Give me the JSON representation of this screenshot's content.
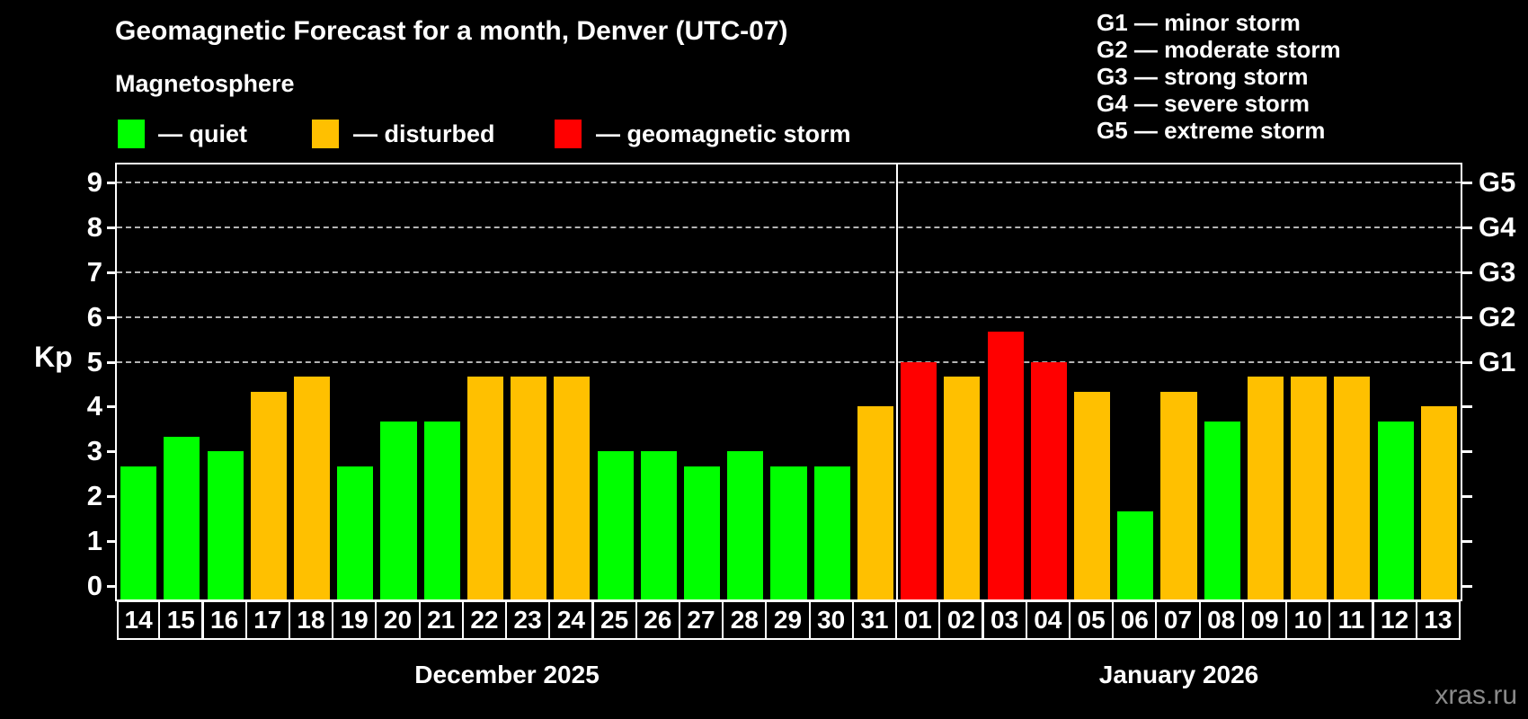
{
  "title": "Geomagnetic Forecast for a month, Denver (UTC-07)",
  "subtitle": "Magnetosphere",
  "status_legend": [
    {
      "status": "quiet",
      "label": "— quiet",
      "color": "#00ff00"
    },
    {
      "status": "disturbed",
      "label": "— disturbed",
      "color": "#ffc000"
    },
    {
      "status": "storm",
      "label": "— geomagnetic storm",
      "color": "#ff0000"
    }
  ],
  "g_scale_legend": [
    "G1 — minor storm",
    "G2 — moderate storm",
    "G3 — strong storm",
    "G4 — severe storm",
    "G5 — extreme storm"
  ],
  "watermark": "xras.ru",
  "chart_data": {
    "type": "bar",
    "ylabel": "Kp",
    "ylim": [
      0,
      9
    ],
    "yticks": [
      0,
      1,
      2,
      3,
      4,
      5,
      6,
      7,
      8,
      9
    ],
    "grid_levels": [
      5,
      6,
      7,
      8,
      9
    ],
    "grid_on": true,
    "right_axis": [
      {
        "value": 5,
        "label": "G1"
      },
      {
        "value": 6,
        "label": "G2"
      },
      {
        "value": 7,
        "label": "G3"
      },
      {
        "value": 8,
        "label": "G4"
      },
      {
        "value": 9,
        "label": "G5"
      }
    ],
    "status_colors": {
      "quiet": "#00ff00",
      "disturbed": "#ffc000",
      "storm": "#ff0000"
    },
    "months": [
      {
        "label": "December 2025",
        "days": [
          {
            "day": "14",
            "kp": 2.67,
            "status": "quiet"
          },
          {
            "day": "15",
            "kp": 3.33,
            "status": "quiet"
          },
          {
            "day": "16",
            "kp": 3.0,
            "status": "quiet"
          },
          {
            "day": "17",
            "kp": 4.33,
            "status": "disturbed"
          },
          {
            "day": "18",
            "kp": 4.67,
            "status": "disturbed"
          },
          {
            "day": "19",
            "kp": 2.67,
            "status": "quiet"
          },
          {
            "day": "20",
            "kp": 3.67,
            "status": "quiet"
          },
          {
            "day": "21",
            "kp": 3.67,
            "status": "quiet"
          },
          {
            "day": "22",
            "kp": 4.67,
            "status": "disturbed"
          },
          {
            "day": "23",
            "kp": 4.67,
            "status": "disturbed"
          },
          {
            "day": "24",
            "kp": 4.67,
            "status": "disturbed"
          },
          {
            "day": "25",
            "kp": 3.0,
            "status": "quiet"
          },
          {
            "day": "26",
            "kp": 3.0,
            "status": "quiet"
          },
          {
            "day": "27",
            "kp": 2.67,
            "status": "quiet"
          },
          {
            "day": "28",
            "kp": 3.0,
            "status": "quiet"
          },
          {
            "day": "29",
            "kp": 2.67,
            "status": "quiet"
          },
          {
            "day": "30",
            "kp": 2.67,
            "status": "quiet"
          },
          {
            "day": "31",
            "kp": 4.0,
            "status": "disturbed"
          }
        ]
      },
      {
        "label": "January 2026",
        "days": [
          {
            "day": "01",
            "kp": 5.0,
            "status": "storm"
          },
          {
            "day": "02",
            "kp": 4.67,
            "status": "disturbed"
          },
          {
            "day": "03",
            "kp": 5.67,
            "status": "storm"
          },
          {
            "day": "04",
            "kp": 5.0,
            "status": "storm"
          },
          {
            "day": "05",
            "kp": 4.33,
            "status": "disturbed"
          },
          {
            "day": "06",
            "kp": 1.67,
            "status": "quiet"
          },
          {
            "day": "07",
            "kp": 4.33,
            "status": "disturbed"
          },
          {
            "day": "08",
            "kp": 3.67,
            "status": "quiet"
          },
          {
            "day": "09",
            "kp": 4.67,
            "status": "disturbed"
          },
          {
            "day": "10",
            "kp": 4.67,
            "status": "disturbed"
          },
          {
            "day": "11",
            "kp": 4.67,
            "status": "disturbed"
          },
          {
            "day": "12",
            "kp": 3.67,
            "status": "quiet"
          },
          {
            "day": "13",
            "kp": 4.0,
            "status": "disturbed"
          }
        ]
      }
    ]
  }
}
